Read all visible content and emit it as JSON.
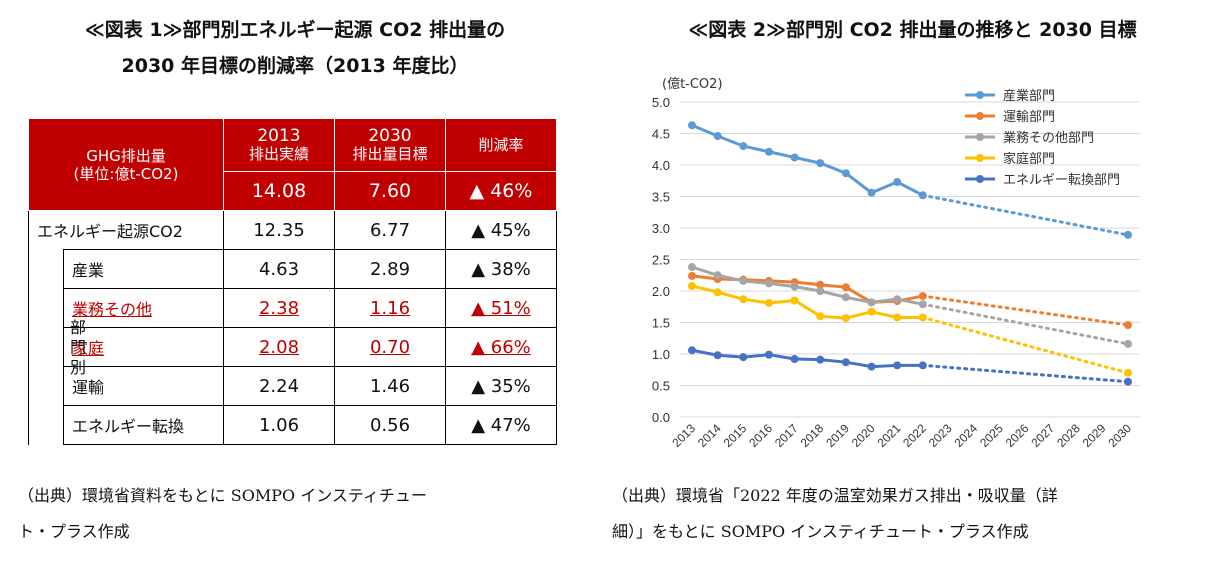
{
  "left_title_line1": "≪図表 1≫部門別エネルギー起源 CO2 排出量の",
  "left_title_line2": "2030 年目標の削減率（2013 年度比）",
  "right_title": "≪図表 2≫部門別 CO2 排出量の推移と 2030 目標",
  "table": {
    "header": {
      "col0_line1": "GHG排出量",
      "col0_line2": "(単位:億t-CO2)",
      "col1_line1": "2013",
      "col1_line2": "排出実績",
      "col2_line1": "2030",
      "col2_line2": "排出量目標",
      "col3": "削減率"
    },
    "total": {
      "v2013": "14.08",
      "v2030": "7.60",
      "rate": "▲ 46%"
    },
    "energy": {
      "label": "エネルギー起源CO2",
      "v2013": "12.35",
      "v2030": "6.77",
      "rate": "▲ 45%"
    },
    "group_label": [
      "部",
      "門",
      "別"
    ],
    "rows": [
      {
        "label": "産業",
        "v2013": "4.63",
        "v2030": "2.89",
        "rate": "▲ 38%"
      },
      {
        "label": "業務その他",
        "v2013": "2.38",
        "v2030": "1.16",
        "rate": "▲ 51%"
      },
      {
        "label": "家庭",
        "v2013": "2.08",
        "v2030": "0.70",
        "rate": "▲ 66%"
      },
      {
        "label": "運輸",
        "v2013": "2.24",
        "v2030": "1.46",
        "rate": "▲ 35%"
      },
      {
        "label": "エネルギー転換",
        "v2013": "1.06",
        "v2030": "0.56",
        "rate": "▲ 47%"
      }
    ],
    "highlight_color": "#c00000"
  },
  "left_source_line1": "（出典）環境省資料をもとに SOMPO インスティチュー",
  "left_source_line2": "ト・プラス作成",
  "right_source_line1": "（出典）環境省「2022 年度の温室効果ガス排出・吸収量（詳",
  "right_source_line2": "細）」をもとに SOMPO インスティチュート・プラス作成",
  "chart_data": {
    "type": "line",
    "ylabel": "(億t-CO2)",
    "ylim": [
      0,
      5
    ],
    "yticks": [
      "0.0",
      "0.5",
      "1.0",
      "1.5",
      "2.0",
      "2.5",
      "3.0",
      "3.5",
      "4.0",
      "4.5",
      "5.0"
    ],
    "x": [
      2013,
      2014,
      2015,
      2016,
      2017,
      2018,
      2019,
      2020,
      2021,
      2022,
      2023,
      2024,
      2025,
      2026,
      2027,
      2028,
      2029,
      2030
    ],
    "grid": true,
    "legend": "top-right",
    "target_year": 2030,
    "series": [
      {
        "name": "産業部門",
        "color": "#5b9bd5",
        "actual": [
          4.63,
          4.46,
          4.3,
          4.21,
          4.12,
          4.03,
          3.87,
          3.56,
          3.73,
          3.52
        ],
        "target": 2.89
      },
      {
        "name": "運輸部門",
        "color": "#ed7d31",
        "actual": [
          2.24,
          2.19,
          2.18,
          2.16,
          2.14,
          2.1,
          2.06,
          1.82,
          1.84,
          1.92
        ],
        "target": 1.46
      },
      {
        "name": "業務その他部門",
        "color": "#a5a5a5",
        "actual": [
          2.38,
          2.25,
          2.16,
          2.12,
          2.07,
          2.0,
          1.9,
          1.82,
          1.87,
          1.79
        ],
        "target": 1.16
      },
      {
        "name": "家庭部門",
        "color": "#ffc000",
        "actual": [
          2.08,
          1.98,
          1.87,
          1.81,
          1.85,
          1.6,
          1.57,
          1.67,
          1.58,
          1.58
        ],
        "target": 0.7
      },
      {
        "name": "エネルギー転換部門",
        "color": "#4472c4",
        "actual": [
          1.06,
          0.98,
          0.95,
          0.99,
          0.92,
          0.91,
          0.87,
          0.8,
          0.82,
          0.82
        ],
        "target": 0.56
      }
    ]
  }
}
